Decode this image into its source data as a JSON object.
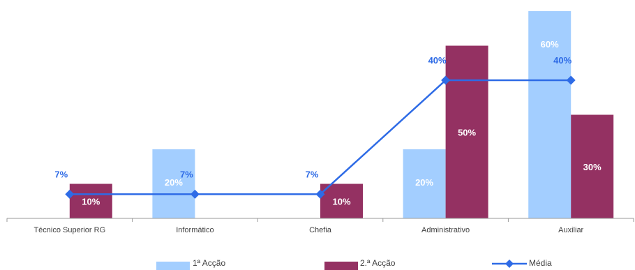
{
  "chart_data": {
    "type": "bar",
    "categories": [
      "Técnico Superior RG",
      "Informático",
      "Chefia",
      "Administrativo",
      "Auxiliar"
    ],
    "series": [
      {
        "name": "1ª Acção",
        "type": "bar",
        "color": "#a3ceff",
        "values": [
          0,
          20,
          0,
          20,
          60
        ],
        "labels": [
          "",
          "20%",
          "",
          "20%",
          "60%"
        ]
      },
      {
        "name": "2.ª Acção",
        "type": "bar",
        "color": "#943162",
        "values": [
          10,
          0,
          10,
          50,
          30
        ],
        "labels": [
          "10%",
          "",
          "10%",
          "50%",
          "30%"
        ]
      },
      {
        "name": "Média",
        "type": "line",
        "color": "#2e6be6",
        "values": [
          7,
          7,
          7,
          40,
          40
        ],
        "labels": [
          "7%",
          "7%",
          "7%",
          "40%",
          "40%"
        ]
      }
    ],
    "ylim": [
      0,
      60
    ],
    "grid": false,
    "legend_position": "bottom"
  }
}
